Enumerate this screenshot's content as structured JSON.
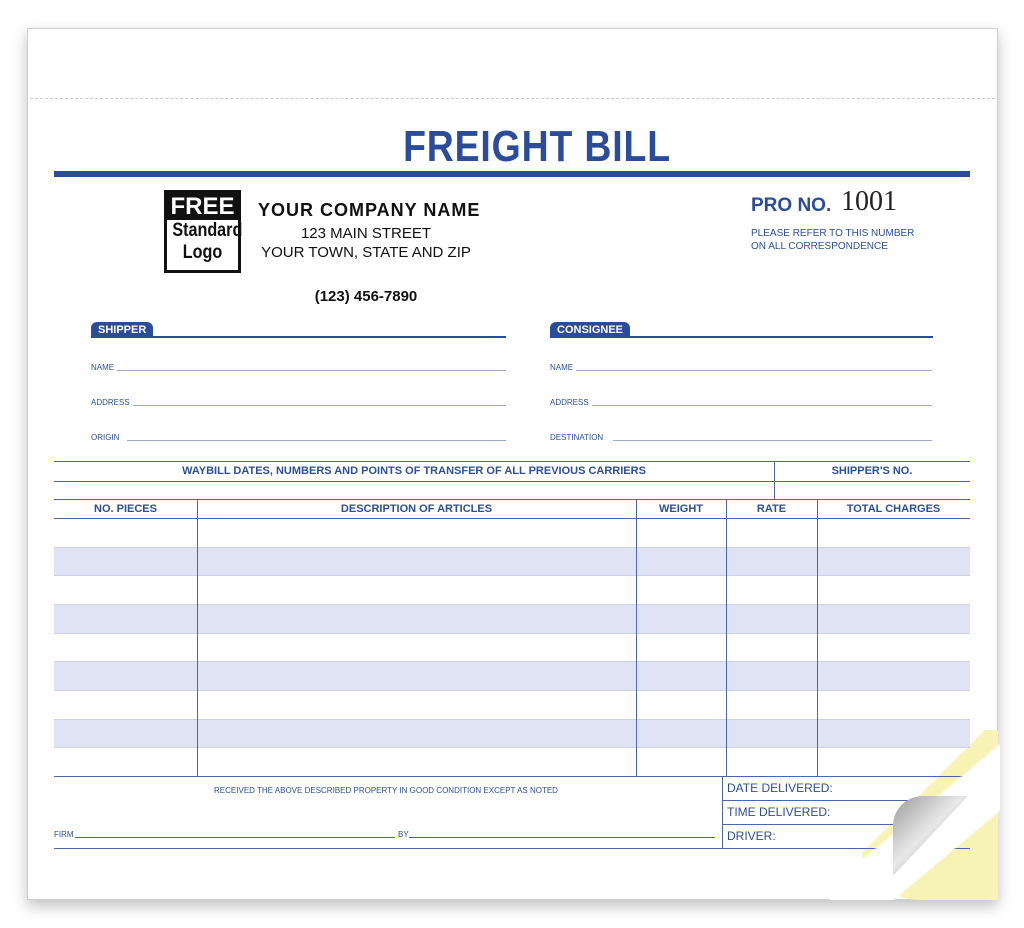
{
  "title": "FREIGHT BILL",
  "logo": {
    "line1": "FREE",
    "line2": "Standard",
    "line3": "Logo"
  },
  "company": {
    "name": "YOUR COMPANY NAME",
    "street": "123 MAIN STREET",
    "city": "YOUR TOWN, STATE AND ZIP",
    "phone": "(123) 456-7890"
  },
  "pro": {
    "label": "PRO NO.",
    "number": "1001",
    "note1": "PLEASE REFER TO THIS NUMBER",
    "note2": "ON ALL CORRESPONDENCE"
  },
  "shipper": {
    "tab": "SHIPPER",
    "fields": [
      "NAME",
      "ADDRESS",
      "ORIGIN"
    ]
  },
  "consignee": {
    "tab": "CONSIGNEE",
    "fields": [
      "NAME",
      "ADDRESS",
      "DESTINATION"
    ]
  },
  "waybill": {
    "header": "WAYBILL DATES, NUMBERS AND POINTS OF TRANSFER OF ALL PREVIOUS CARRIERS",
    "shippers_no": "SHIPPER'S NO."
  },
  "table": {
    "columns": [
      "NO. PIECES",
      "DESCRIPTION OF ARTICLES",
      "WEIGHT",
      "RATE",
      "TOTAL CHARGES"
    ],
    "row_count": 9
  },
  "footer": {
    "received": "RECEIVED THE ABOVE DESCRIBED PROPERTY IN GOOD CONDITION EXCEPT AS NOTED",
    "firm": "FIRM",
    "by": "BY",
    "date_delivered": "DATE DELIVERED:",
    "time_delivered": "TIME DELIVERED:",
    "driver": "DRIVER:"
  },
  "colors": {
    "accent": "#2b4b9b",
    "row_shade": "#dfe3f3",
    "copy2": "#f7f3b5",
    "copy3": "#f3dde6"
  }
}
